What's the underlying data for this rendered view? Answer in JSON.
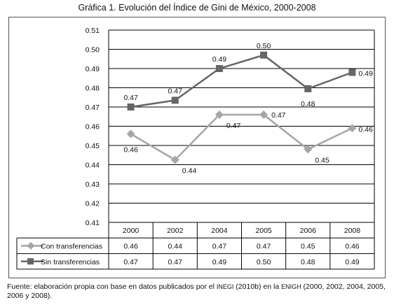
{
  "title": "Gráfica 1. Evolución del Índice de Gini de México, 2000-2008",
  "source_line": {
    "prefix": "Fuente: elaboración propia con base en datos publicados por el ",
    "inegi": "INEGI",
    "middle": " (2010b) en la ",
    "enigh": "ENIGH",
    "suffix": " (2000, 2002, 2004, 2005, 2006 y 2008)."
  },
  "chart_data": {
    "type": "line",
    "categories": [
      "2000",
      "2002",
      "2004",
      "2005",
      "2006",
      "2008"
    ],
    "y_ticks": [
      "0.51",
      "0.50",
      "0.49",
      "0.48",
      "0.47",
      "0.46",
      "0.45",
      "0.44",
      "0.43",
      "0.42",
      "0.41"
    ],
    "ylim": [
      0.41,
      0.51
    ],
    "grid": true,
    "legend": "table-below",
    "series": [
      {
        "name": "Con transferencias",
        "values": [
          0.456,
          0.4425,
          0.466,
          0.466,
          0.448,
          0.459
        ],
        "labels": [
          "0.46",
          "0.44",
          "0.47",
          "0.47",
          "0.45",
          "0.46"
        ],
        "color": "#a6a6a6",
        "marker": "diamond"
      },
      {
        "name": "Sin transferencias",
        "values": [
          0.47,
          0.4735,
          0.49,
          0.497,
          0.4795,
          0.488
        ],
        "labels": [
          "0.47",
          "0.47",
          "0.49",
          "0.50",
          "0.48",
          "0.49"
        ],
        "color": "#666666",
        "marker": "square"
      }
    ]
  }
}
